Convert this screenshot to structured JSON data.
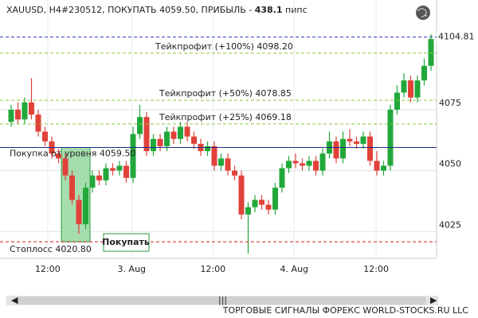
{
  "chart_data": {
    "type": "candlestick",
    "title": "XAUUSD, H4#230512, ПОКУПАТЬ 4059.50, ПРИБЫЛЬ -",
    "profit": 438.1,
    "profit_unit": "пипс",
    "categories": [
      null,
      null,
      null,
      null,
      null,
      null,
      null,
      null,
      null,
      null,
      null,
      null,
      null,
      null,
      null,
      null,
      null,
      null,
      null,
      null,
      null,
      null,
      null,
      null,
      null,
      null,
      null,
      null,
      null,
      null,
      null,
      null,
      null,
      null,
      null,
      null,
      null,
      null,
      null,
      null,
      null,
      null,
      null,
      null,
      null,
      null,
      null,
      null,
      null,
      null,
      null,
      null,
      null,
      null,
      null,
      null,
      null,
      null,
      null,
      null,
      null,
      null,
      null
    ],
    "open": [
      4070,
      4075,
      4071,
      4078,
      4073,
      4066,
      4062,
      4057,
      4055,
      4048,
      4038,
      4028,
      4043,
      4048,
      4046,
      4051,
      4050,
      4052,
      4047,
      4065,
      4072,
      4058,
      4063,
      4060,
      4066,
      4063,
      4068,
      4064,
      4061,
      4058,
      4060,
      4052,
      4055,
      4050,
      4048,
      4032,
      4035,
      4038,
      4036,
      4034,
      4043,
      4051,
      4054,
      4053,
      4052,
      4054,
      4050,
      4057,
      4062,
      4055,
      4063,
      4062,
      4061,
      4064,
      4054,
      4050,
      4052,
      4075,
      4082,
      4087,
      4080,
      4087,
      4093
    ],
    "high": [
      4077,
      4078,
      4080,
      4088,
      4075,
      4068,
      4064,
      4059,
      4057,
      4050,
      4040,
      4045,
      4050,
      4050,
      4053,
      4053,
      4054,
      4054,
      4068,
      4077,
      4074,
      4065,
      4065,
      4068,
      4068,
      4070,
      4070,
      4066,
      4063,
      4062,
      4062,
      4057,
      4057,
      4052,
      4050,
      4037,
      4040,
      4040,
      4038,
      4045,
      4053,
      4056,
      4057,
      4055,
      4056,
      4056,
      4059,
      4066,
      4064,
      4066,
      4067,
      4064,
      4066,
      4066,
      4058,
      4054,
      4077,
      4085,
      4090,
      4089,
      4089,
      4096,
      4106
    ],
    "low": [
      4068,
      4069,
      4069,
      4071,
      4064,
      4060,
      4055,
      4053,
      4046,
      4036,
      4024,
      4026,
      4041,
      4044,
      4044,
      4048,
      4048,
      4045,
      4045,
      4063,
      4056,
      4056,
      4058,
      4058,
      4061,
      4061,
      4062,
      4059,
      4056,
      4056,
      4050,
      4050,
      4048,
      4046,
      4030,
      4016,
      4033,
      4034,
      4032,
      4032,
      4041,
      4049,
      4051,
      4050,
      4050,
      4048,
      4048,
      4055,
      4053,
      4053,
      4060,
      4059,
      4059,
      4052,
      4048,
      4048,
      4050,
      4073,
      4080,
      4078,
      4078,
      4085,
      4091
    ],
    "close": [
      4075,
      4071,
      4078,
      4073,
      4066,
      4062,
      4057,
      4055,
      4048,
      4038,
      4028,
      4043,
      4048,
      4046,
      4051,
      4050,
      4052,
      4047,
      4065,
      4072,
      4058,
      4063,
      4060,
      4066,
      4063,
      4068,
      4064,
      4061,
      4058,
      4060,
      4052,
      4055,
      4050,
      4048,
      4032,
      4035,
      4038,
      4036,
      4034,
      4043,
      4051,
      4054,
      4053,
      4052,
      4054,
      4050,
      4057,
      4062,
      4055,
      4063,
      4062,
      4061,
      4064,
      4054,
      4050,
      4052,
      4075,
      4082,
      4087,
      4080,
      4087,
      4093,
      4104
    ],
    "up_color": "#22a83a",
    "down_color": "#e0423a",
    "ylim": [
      4014,
      4120
    ],
    "yticks": [
      4025,
      4050,
      4075
    ],
    "xticks": [
      {
        "value": 5.4,
        "label": "12:00"
      },
      {
        "value": 17.8,
        "label": "3. Aug"
      },
      {
        "value": 29.8,
        "label": "12:00"
      },
      {
        "value": 41.8,
        "label": "4. Aug"
      },
      {
        "value": 53.9,
        "label": "12:00"
      }
    ],
    "levels": [
      {
        "value": 4104.81,
        "label": "4104.81",
        "color": "#2b3bbf",
        "dash": true
      },
      {
        "value": 4098.2,
        "label": "Тейкпрофит (+100%) 4098.20",
        "color": "#8cc63f",
        "dash": true
      },
      {
        "value": 4078.85,
        "label": "Тейкпрофит (+50%) 4078.85",
        "color": "#8cc63f",
        "dash": true
      },
      {
        "value": 4069.18,
        "label": "Тейкпрофит (+25%) 4069.18",
        "color": "#8cc63f",
        "dash": true
      },
      {
        "value": 4059.5,
        "label": "Покупка от уровня 4059.50",
        "color": "#1a2a8a",
        "dash": false
      },
      {
        "value": 4020.8,
        "label": "Стоплосс 4020.80",
        "color": "#d02020",
        "dash": true
      }
    ],
    "button": "Покупать",
    "footer": "ТОРГОВЫЕ СИГНАЛЫ ФОРЕКС WORLD-STOCKS.RU LLC"
  }
}
